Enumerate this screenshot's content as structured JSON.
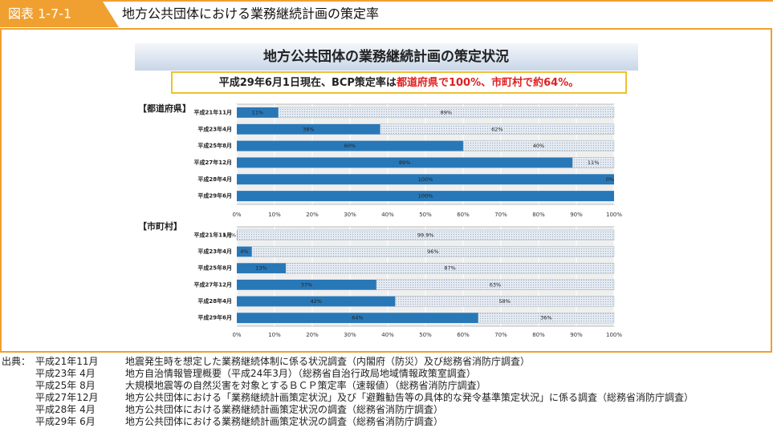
{
  "header": {
    "label": "図表 1-7-1",
    "title": "地方公共団体における業務継続計画の策定率"
  },
  "figure": {
    "title": "地方公共団体の業務継続計画の策定状況",
    "subtitle": "平成29年6月1日現在、BCP策定率は",
    "subtitle_highlight": "都道府県で100%、市町村で約64%。"
  },
  "chart_data": [
    {
      "type": "bar",
      "orientation": "horizontal",
      "stacked": true,
      "title": "【都道府県】",
      "categories": [
        "平成21年11月",
        "平成23年4月",
        "平成25年8月",
        "平成27年12月",
        "平成28年4月",
        "平成29年6月"
      ],
      "series": [
        {
          "color": "#2878b8",
          "values": [
            11,
            38,
            60,
            89,
            100,
            100
          ],
          "value_labels": [
            "11%",
            "38%",
            "60%",
            "89%",
            "100%",
            "100%"
          ]
        },
        {
          "color": "#e4eaf2",
          "values": [
            89,
            62,
            40,
            11,
            0,
            null
          ],
          "value_labels": [
            "89%",
            "62%",
            "40%",
            "11%",
            "0%",
            null
          ]
        }
      ],
      "xlim": [
        0,
        100
      ],
      "xticks": [
        {
          "value": 0,
          "label": "0%"
        },
        {
          "value": 10,
          "label": "10%"
        },
        {
          "value": 20,
          "label": "20%"
        },
        {
          "value": 30,
          "label": "30%"
        },
        {
          "value": 40,
          "label": "40%"
        },
        {
          "value": 50,
          "label": "50%"
        },
        {
          "value": 60,
          "label": "60%"
        },
        {
          "value": 70,
          "label": "70%"
        },
        {
          "value": 80,
          "label": "80%"
        },
        {
          "value": 90,
          "label": "90%"
        },
        {
          "value": 100,
          "label": "100%"
        }
      ],
      "grid": true
    },
    {
      "type": "bar",
      "orientation": "horizontal",
      "stacked": true,
      "title": "【市町村】",
      "categories": [
        "平成21年11月",
        "平成23年4月",
        "平成25年8月",
        "平成27年12月",
        "平成28年4月",
        "平成29年6月"
      ],
      "series": [
        {
          "color": "#2878b8",
          "values": [
            0.1,
            4,
            13,
            37,
            42,
            64
          ],
          "value_labels": [
            "0.1%",
            "4%",
            "13%",
            "37%",
            "42%",
            "64%"
          ]
        },
        {
          "color": "#e4eaf2",
          "values": [
            99.9,
            96,
            87,
            63,
            58,
            36
          ],
          "value_labels": [
            "99.9%",
            "96%",
            "87%",
            "63%",
            "58%",
            "36%"
          ]
        }
      ],
      "xlim": [
        0,
        100
      ],
      "xticks": [
        {
          "value": 0,
          "label": "0%"
        },
        {
          "value": 10,
          "label": "10%"
        },
        {
          "value": 20,
          "label": "20%"
        },
        {
          "value": 30,
          "label": "30%"
        },
        {
          "value": 40,
          "label": "40%"
        },
        {
          "value": 50,
          "label": "50%"
        },
        {
          "value": 60,
          "label": "60%"
        },
        {
          "value": 70,
          "label": "70%"
        },
        {
          "value": 80,
          "label": "80%"
        },
        {
          "value": 90,
          "label": "90%"
        },
        {
          "value": 100,
          "label": "100%"
        }
      ],
      "grid": true
    }
  ],
  "source": {
    "label": "出典：",
    "items": [
      {
        "date": "平成21年11月",
        "text": "地震発生時を想定した業務継続体制に係る状況調査（内閣府（防災）及び総務省消防庁調査）"
      },
      {
        "date": "平成23年 4月",
        "text": "地方自治情報管理概要（平成24年3月）（総務省自治行政局地域情報政策室調査）"
      },
      {
        "date": "平成25年 8月",
        "text": "大規模地震等の自然災害を対象とするＢＣＰ策定率（速報値）（総務省消防庁調査）"
      },
      {
        "date": "平成27年12月",
        "text": "地方公共団体における「業務継続計画策定状況」及び「避難勧告等の具体的な発令基準策定状況」に係る調査（総務省消防庁調査）"
      },
      {
        "date": "平成28年 4月",
        "text": "地方公共団体における業務継続計画策定状況の調査（総務省消防庁調査）"
      },
      {
        "date": "平成29年 6月",
        "text": "地方公共団体における業務継続計画策定状況の調査（総務省消防庁調査）"
      }
    ]
  }
}
